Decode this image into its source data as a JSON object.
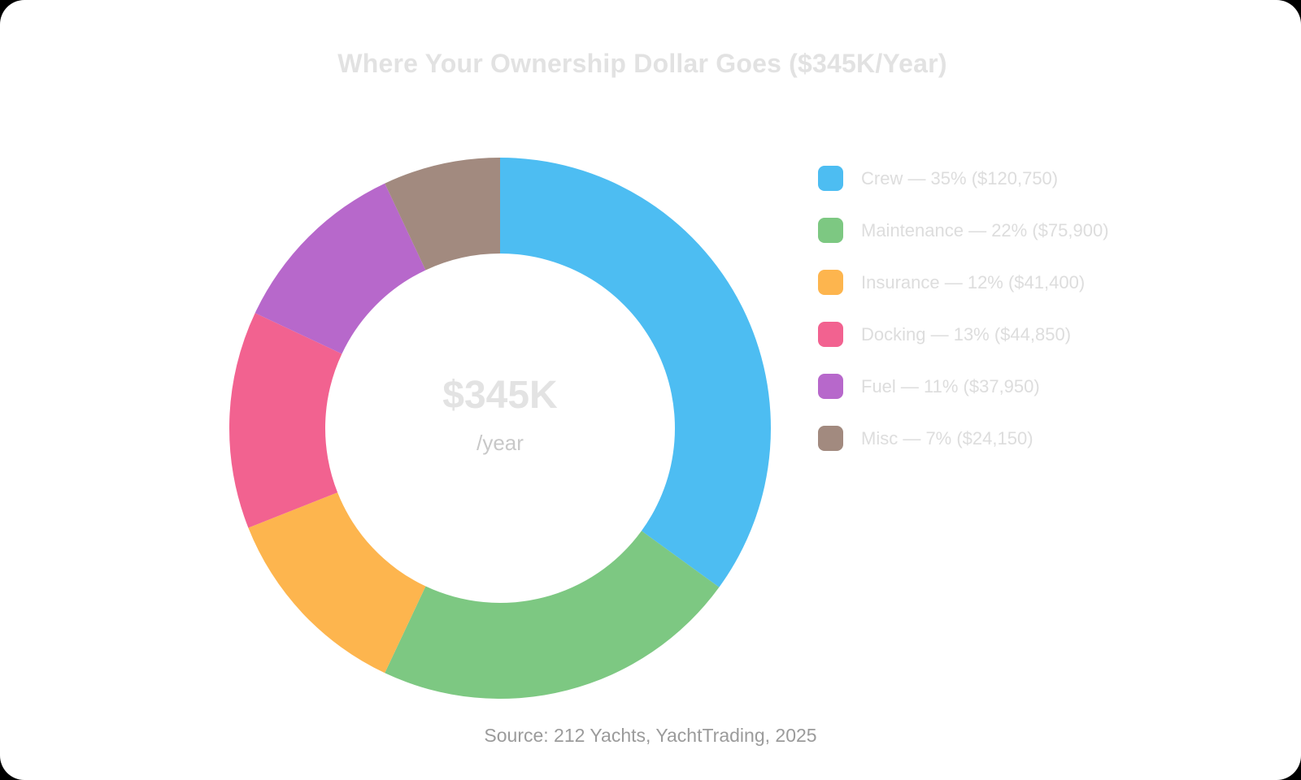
{
  "title": "Where Your Ownership Dollar Goes ($345K/Year)",
  "source": "Source: 212 Yachts, YachtTrading, 2025",
  "text_colors": {
    "title": "#E2E2E2",
    "legend": "#DDDDDD",
    "center_value": "#E3E3E3",
    "center_unit": "#C8C8C8",
    "source": "#9B9B9B"
  },
  "chart_data": {
    "type": "pie",
    "variant": "donut",
    "title": "Where Your Ownership Dollar Goes ($345K/Year)",
    "center_value": "$345K",
    "center_unit": "/year",
    "legend_position": "right",
    "start_angle_deg": -90,
    "direction": "clockwise",
    "cutout_ratio": 0.645,
    "categories": [
      "Crew",
      "Maintenance",
      "Insurance",
      "Docking",
      "Fuel",
      "Misc"
    ],
    "values": [
      35,
      22,
      12,
      13,
      11,
      7
    ],
    "amounts_usd": [
      120750,
      75900,
      41400,
      44850,
      37950,
      24150
    ],
    "amount_labels": [
      "$120,750",
      "$75,900",
      "$41,400",
      "$44,850",
      "$37,950",
      "$24,150"
    ],
    "colors": [
      "#4DBDF2",
      "#7DC882",
      "#FDB54E",
      "#F26290",
      "#B768CB",
      "#A28A7F"
    ],
    "legend_labels": [
      "Crew — 35% ($120,750)",
      "Maintenance — 22% ($75,900)",
      "Insurance — 12% ($41,400)",
      "Docking — 13% ($44,850)",
      "Fuel — 11% ($37,950)",
      "Misc — 7% ($24,150)"
    ]
  }
}
